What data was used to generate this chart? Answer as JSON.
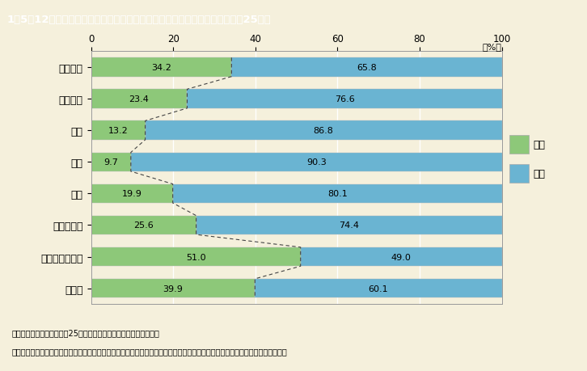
{
  "title": "1－5－12図　専攻分野別に見た大学等の研究本務者の割合（男女別）（平成25年）",
  "categories": [
    "人文科学",
    "社会科学",
    "理学",
    "工学",
    "農学",
    "医学・歯学",
    "薬学・看護学等",
    "その他"
  ],
  "female_values": [
    34.2,
    23.4,
    13.2,
    9.7,
    19.9,
    25.6,
    51.0,
    39.9
  ],
  "male_values": [
    65.8,
    76.6,
    86.8,
    90.3,
    80.1,
    74.4,
    49.0,
    60.1
  ],
  "female_color": "#8dc879",
  "male_color": "#6ab4d2",
  "female_label": "女性",
  "male_label": "男性",
  "background_color": "#f5f0dc",
  "title_background": "#9b8b6e",
  "title_text_color": "#ffffff",
  "xlim": [
    0,
    100
  ],
  "xticks": [
    0,
    20,
    40,
    60,
    80,
    100
  ],
  "note_line1": "（備考）１．総務省「平成25年科学技術研究調査報告」より作成。",
  "note_line2": "　　　　２．大学等：大学の学部（大学院の研究科を含む），短期大学，高等専門学校，大学附置研究所，大学共同利用機関等。"
}
